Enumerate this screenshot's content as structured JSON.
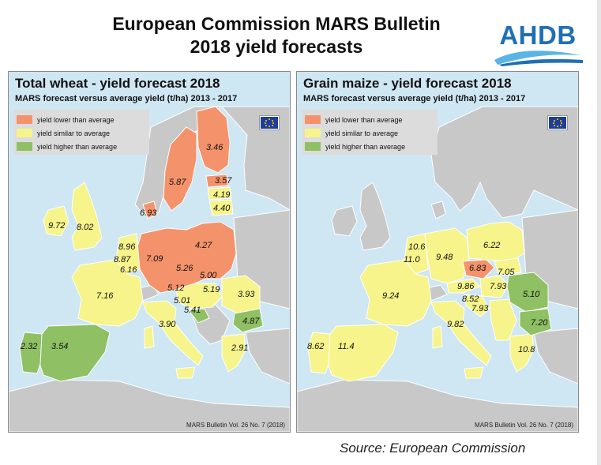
{
  "title": {
    "line1": "European Commission MARS Bulletin",
    "line2": "2018 yield forecasts"
  },
  "logo": {
    "text": "AHDB"
  },
  "colors": {
    "lower": "#f4936b",
    "similar": "#f6f48a",
    "higher": "#8fc063",
    "non_eu": "#c8c8c8",
    "sea": "#cfe6f3",
    "border": "#ffffff"
  },
  "legend": {
    "lower": "yield lower than average",
    "similar": "yield similar to average",
    "higher": "yield higher than average"
  },
  "wheat": {
    "title": "Total wheat - yield forecast 2018",
    "subtitle": "MARS forecast versus average yield (t/ha) 2013 - 2017",
    "footer": "MARS Bulletin Vol. 26 No. 7 (2018)",
    "values": {
      "finland": "3.46",
      "sweden": "5.87",
      "estonia": "3.57",
      "latvia": "4.19",
      "lithuania": "4.40",
      "denmark": "6.93",
      "ireland": "9.72",
      "uk": "8.02",
      "netherlands": "8.96",
      "belgium": "8.87",
      "luxembourg": "6.16",
      "germany": "7.09",
      "poland": "4.27",
      "czechia": "5.26",
      "slovakia": "5.00",
      "austria": "5.12",
      "hungary": "5.19",
      "slovenia": "5.01",
      "croatia": "5.41",
      "romania": "3.93",
      "bulgaria": "4.87",
      "france": "7.16",
      "italy": "3.90",
      "spain": "3.54",
      "portugal": "2.32",
      "greece": "2.91"
    }
  },
  "maize": {
    "title": "Grain maize - yield forecast 2018",
    "subtitle": "MARS forecast versus average yield (t/ha) 2013 - 2017",
    "footer": "MARS Bulletin Vol. 26 No. 7 (2018)",
    "values": {
      "netherlands": "10.6",
      "belgium": "11.0",
      "germany": "9.48",
      "poland": "6.22",
      "czechia": "6.83",
      "slovakia": "7.05",
      "austria": "9.86",
      "hungary": "7.93",
      "slovenia": "8.52",
      "croatia": "7.93",
      "romania": "5.10",
      "bulgaria": "7.20",
      "france": "9.24",
      "italy": "9.82",
      "spain": "11.4",
      "portugal": "8.62",
      "greece": "10.8"
    }
  },
  "source": "Source: European Commission"
}
